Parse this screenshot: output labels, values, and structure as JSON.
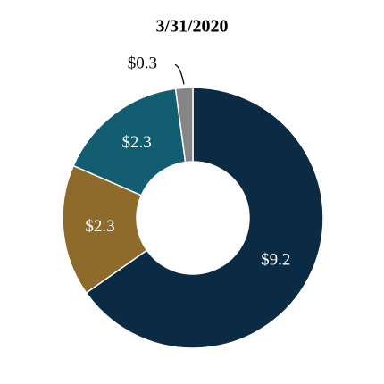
{
  "chart_data": {
    "type": "donut",
    "title": "3/31/2020",
    "values": [
      9.2,
      2.3,
      2.3,
      0.3
    ],
    "value_labels": [
      "$9.2",
      "$2.3",
      "$2.3",
      "$0.3"
    ],
    "colors": [
      "#0b2a44",
      "#8e6a2b",
      "#125d70",
      "#858585"
    ]
  }
}
